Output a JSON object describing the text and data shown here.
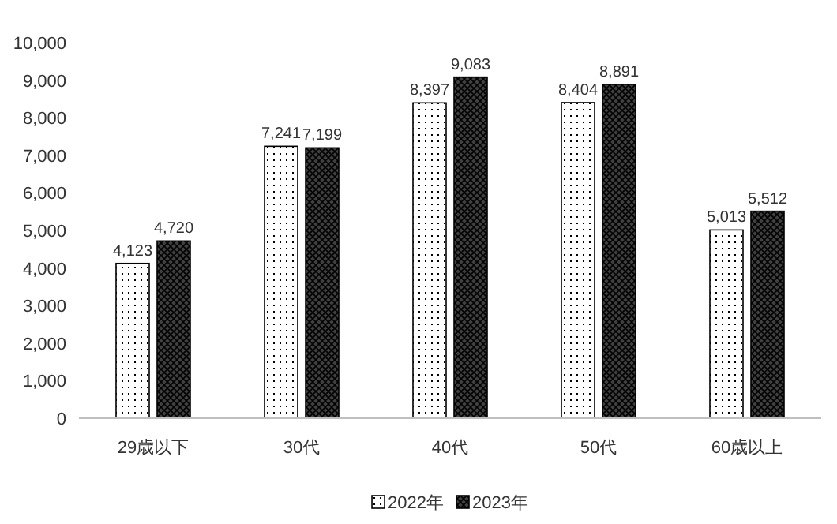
{
  "chart_data": {
    "type": "bar",
    "categories": [
      "29歳以下",
      "30代",
      "40代",
      "50代",
      "60歳以上"
    ],
    "series": [
      {
        "name": "2022年",
        "color": "#ffffff",
        "values": [
          4123,
          7241,
          8397,
          8404,
          5013
        ],
        "value_labels": [
          "4,123",
          "7,241",
          "8,397",
          "8,404",
          "5,013"
        ]
      },
      {
        "name": "2023年",
        "color": "#404040",
        "values": [
          4720,
          7199,
          9083,
          8891,
          5512
        ],
        "value_labels": [
          "4,720",
          "7,199",
          "9,083",
          "8,891",
          "5,512"
        ]
      }
    ],
    "ylim": [
      0,
      10000
    ],
    "yticks": [
      {
        "value": 0,
        "label": "0"
      },
      {
        "value": 1000,
        "label": "1,000"
      },
      {
        "value": 2000,
        "label": "2,000"
      },
      {
        "value": 3000,
        "label": "3,000"
      },
      {
        "value": 4000,
        "label": "4,000"
      },
      {
        "value": 5000,
        "label": "5,000"
      },
      {
        "value": 6000,
        "label": "6,000"
      },
      {
        "value": 7000,
        "label": "7,000"
      },
      {
        "value": 8000,
        "label": "8,000"
      },
      {
        "value": 9000,
        "label": "9,000"
      },
      {
        "value": 10000,
        "label": "10,000"
      }
    ],
    "legend": "bottom"
  }
}
